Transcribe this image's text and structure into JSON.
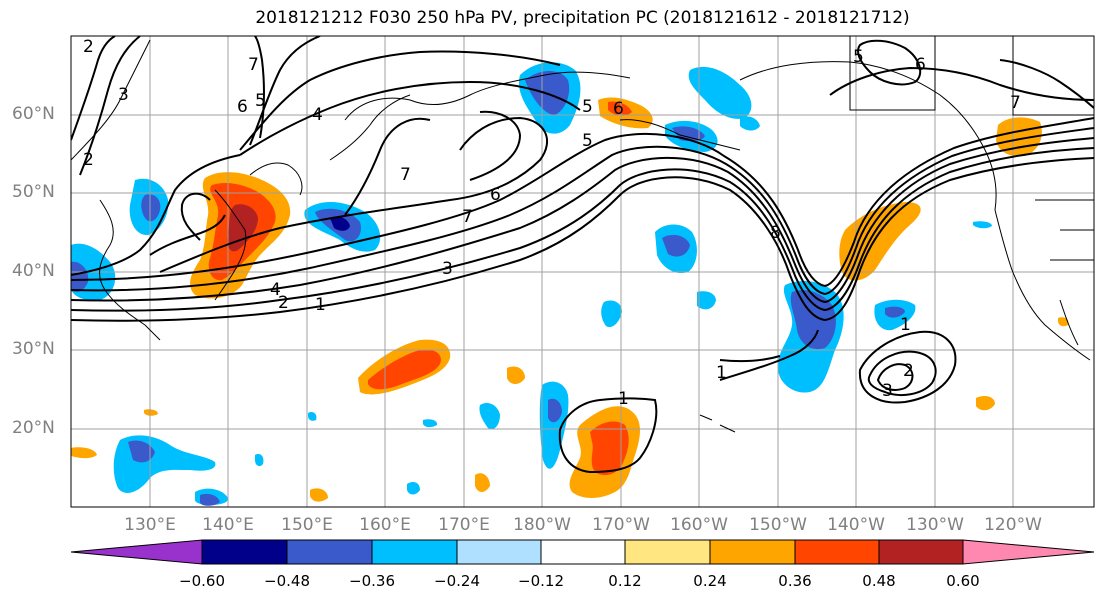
{
  "title": "2018121212 F030 250 hPa PV, precipitation PC (2018121612 - 2018121712)",
  "lat_labels": [
    "60°N",
    "50°N",
    "40°N",
    "30°N",
    "20°N"
  ],
  "lon_labels": [
    "130°E",
    "140°E",
    "150°E",
    "160°E",
    "170°E",
    "180°W",
    "170°W",
    "160°W",
    "150°W",
    "140°W",
    "130°W",
    "120°W"
  ],
  "colorbar": {
    "ticks": [
      "−0.60",
      "−0.48",
      "−0.36",
      "−0.24",
      "−0.12",
      "0.12",
      "0.24",
      "0.36",
      "0.48",
      "0.60"
    ],
    "colors": [
      "#9932cc",
      "#00008b",
      "#3a5acb",
      "#00bfff",
      "#b0e0ff",
      "#ffffff",
      "#ffe680",
      "#ffa500",
      "#ff4500",
      "#b22222",
      "#ff88b0"
    ]
  },
  "contour_labels": {
    "pv": [
      "2",
      "3",
      "2",
      "7",
      "6",
      "5",
      "4",
      "7",
      "6",
      "5",
      "5",
      "6",
      "7",
      "4",
      "3",
      "2",
      "1",
      "8",
      "5",
      "6",
      "7",
      "1",
      "1",
      "2",
      "3",
      "1"
    ]
  }
}
